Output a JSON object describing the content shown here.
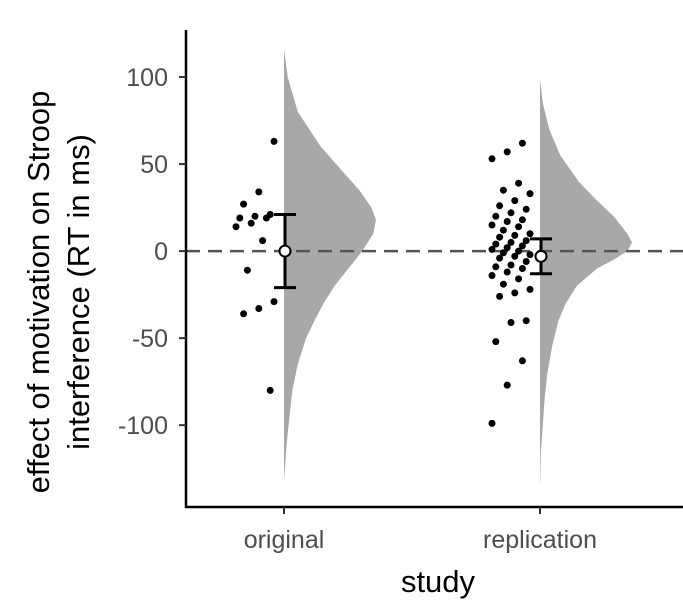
{
  "chart_data": {
    "type": "raincloud",
    "title": "",
    "xlabel": "study",
    "ylabel_lines": [
      "effect of motivation on Stroop",
      "interference (RT in ms)"
    ],
    "categories": [
      "original",
      "replication"
    ],
    "ylim": [
      -147,
      127
    ],
    "yticks": [
      100,
      50,
      0,
      -50,
      -100
    ],
    "ytick_labels": [
      "100",
      "50",
      "0",
      "-50",
      "-100"
    ],
    "reference_line": {
      "y": 0,
      "style": "dashed"
    },
    "grid": false,
    "legend": "none",
    "colors": {
      "density": "#a8a8a8",
      "points": "#000000",
      "reference": "#555555",
      "axis": "#000000",
      "tick_text": "#4d4d4d"
    },
    "groups": [
      {
        "name": "original",
        "mean": 0,
        "ci": [
          -21,
          21
        ],
        "points": [
          63,
          34,
          27,
          21,
          20,
          19,
          19,
          16,
          14,
          6,
          -11,
          -29,
          -33,
          -36,
          -80
        ],
        "density": {
          "y": [
            116,
            100,
            80,
            60,
            45,
            35,
            25,
            18,
            10,
            0,
            -10,
            -20,
            -30,
            -40,
            -50,
            -65,
            -80,
            -95,
            -110,
            -125,
            -132
          ],
          "d": [
            0,
            0.04,
            0.15,
            0.4,
            0.65,
            0.82,
            0.95,
            1.0,
            0.97,
            0.85,
            0.7,
            0.55,
            0.43,
            0.33,
            0.24,
            0.15,
            0.09,
            0.06,
            0.03,
            0.01,
            0
          ]
        }
      },
      {
        "name": "replication",
        "mean": -3,
        "ci": [
          -13,
          7
        ],
        "points": [
          62,
          57,
          53,
          39,
          35,
          33,
          29,
          26,
          24,
          22,
          20,
          18,
          17,
          15,
          14,
          12,
          10,
          9,
          8,
          6,
          5,
          4,
          3,
          2,
          1,
          0,
          -1,
          -2,
          -3,
          -4,
          -6,
          -8,
          -9,
          -10,
          -12,
          -14,
          -16,
          -19,
          -22,
          -24,
          -26,
          -40,
          -41,
          -52,
          -63,
          -77,
          -99
        ],
        "density": {
          "y": [
            99,
            85,
            70,
            55,
            40,
            30,
            20,
            10,
            5,
            0,
            -5,
            -10,
            -20,
            -30,
            -40,
            -55,
            -70,
            -85,
            -100,
            -115,
            -130,
            -135
          ],
          "d": [
            0,
            0.03,
            0.1,
            0.22,
            0.42,
            0.6,
            0.8,
            0.95,
            1.0,
            0.95,
            0.8,
            0.62,
            0.4,
            0.28,
            0.2,
            0.13,
            0.08,
            0.05,
            0.03,
            0.01,
            0.003,
            0
          ]
        }
      }
    ]
  }
}
